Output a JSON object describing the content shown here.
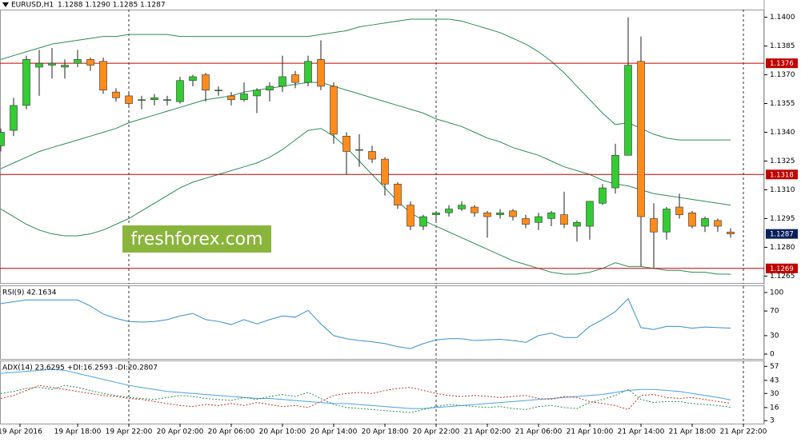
{
  "chart_data": [
    {
      "type": "candlestick",
      "title": "EURUSD,H1",
      "subtitle": "1.1288 1.1290 1.1285 1.1287",
      "open": [
        1.1333,
        1.1341,
        1.1354,
        1.1374,
        1.1375,
        1.1374,
        1.1376,
        1.1378,
        1.1377,
        1.1361,
        1.1359,
        1.1357,
        1.1357,
        1.1357,
        1.1356,
        1.1367,
        1.137,
        1.1362,
        1.1359,
        1.1357,
        1.1359,
        1.1362,
        1.1364,
        1.137,
        1.1366,
        1.1378,
        1.1364,
        1.1338,
        1.1331,
        1.133,
        1.1326,
        1.1313,
        1.1302,
        1.1291,
        1.1297,
        1.1298,
        1.13,
        1.1301,
        1.1298,
        1.1297,
        1.1299,
        1.1295,
        1.1293,
        1.1295,
        1.1297,
        1.1291,
        1.1291,
        1.1303,
        1.1311,
        1.1328,
        1.1377,
        1.1295,
        1.1288,
        1.1301,
        1.1298,
        1.1291,
        1.1294,
        1.1288
      ],
      "high": [
        1.1342,
        1.1358,
        1.138,
        1.1383,
        1.1384,
        1.1378,
        1.1383,
        1.1379,
        1.1379,
        1.1363,
        1.1361,
        1.1359,
        1.136,
        1.1359,
        1.1369,
        1.137,
        1.1371,
        1.1364,
        1.1361,
        1.1366,
        1.1363,
        1.1366,
        1.138,
        1.1372,
        1.138,
        1.1388,
        1.1366,
        1.134,
        1.1339,
        1.1333,
        1.1327,
        1.1314,
        1.1304,
        1.1297,
        1.1299,
        1.1302,
        1.1304,
        1.1302,
        1.1299,
        1.13,
        1.13,
        1.1297,
        1.1298,
        1.1299,
        1.1309,
        1.1294,
        1.1304,
        1.1313,
        1.1334,
        1.14,
        1.139,
        1.1303,
        1.1301,
        1.1308,
        1.1299,
        1.1296,
        1.1295,
        1.129
      ],
      "low": [
        1.133,
        1.1338,
        1.1352,
        1.1359,
        1.1368,
        1.1368,
        1.1374,
        1.1372,
        1.136,
        1.1356,
        1.1354,
        1.1352,
        1.1354,
        1.1354,
        1.1355,
        1.1364,
        1.1356,
        1.1359,
        1.1354,
        1.1356,
        1.135,
        1.1356,
        1.1361,
        1.1363,
        1.1364,
        1.1362,
        1.1334,
        1.1318,
        1.1322,
        1.1324,
        1.1307,
        1.13,
        1.1289,
        1.1289,
        1.1293,
        1.1296,
        1.1299,
        1.1296,
        1.1285,
        1.1295,
        1.1294,
        1.129,
        1.1289,
        1.1291,
        1.129,
        1.1283,
        1.1284,
        1.1302,
        1.1308,
        1.1328,
        1.127,
        1.1269,
        1.1284,
        1.1295,
        1.129,
        1.1288,
        1.1288,
        1.1285
      ],
      "close": [
        1.134,
        1.1354,
        1.1378,
        1.1376,
        1.1376,
        1.1375,
        1.1378,
        1.1375,
        1.1362,
        1.1358,
        1.1355,
        1.1357,
        1.1358,
        1.1357,
        1.1367,
        1.1369,
        1.1362,
        1.1362,
        1.1357,
        1.136,
        1.1362,
        1.1364,
        1.1369,
        1.1366,
        1.1377,
        1.1364,
        1.1339,
        1.133,
        1.1331,
        1.1326,
        1.1313,
        1.1302,
        1.1291,
        1.1296,
        1.1298,
        1.13,
        1.1302,
        1.1298,
        1.1296,
        1.1298,
        1.1296,
        1.1292,
        1.1296,
        1.1298,
        1.1292,
        1.1293,
        1.1304,
        1.1311,
        1.1328,
        1.1375,
        1.1296,
        1.1288,
        1.13,
        1.1297,
        1.1291,
        1.1295,
        1.1291,
        1.1287
      ],
      "up_color": "#33cc33",
      "down_color": "#ff8c1a",
      "overlays": [
        {
          "color": "#2e8b57",
          "values": [
            1.1378,
            1.138,
            1.1382,
            1.1384,
            1.1386,
            1.1387,
            1.1388,
            1.1389,
            1.139,
            1.139,
            1.1391,
            1.1391,
            1.1391,
            1.1391,
            1.139,
            1.139,
            1.139,
            1.139,
            1.139,
            1.139,
            1.139,
            1.139,
            1.139,
            1.139,
            1.139,
            1.1391,
            1.1392,
            1.1393,
            1.1395,
            1.1396,
            1.1397,
            1.1398,
            1.1399,
            1.1399,
            1.1399,
            1.1399,
            1.1398,
            1.1396,
            1.1394,
            1.1392,
            1.1389,
            1.1386,
            1.1382,
            1.1377,
            1.1371,
            1.1364,
            1.1357,
            1.135,
            1.1344,
            1.1345,
            1.1342,
            1.1339,
            1.1337,
            1.1336,
            1.1336,
            1.1336,
            1.1336,
            1.1336
          ]
        },
        {
          "color": "#2e8b57",
          "values": [
            1.1321,
            1.1324,
            1.1327,
            1.133,
            1.1332,
            1.1334,
            1.1336,
            1.1338,
            1.134,
            1.1342,
            1.1345,
            1.1347,
            1.1349,
            1.1351,
            1.1353,
            1.1355,
            1.1357,
            1.1358,
            1.1359,
            1.1361,
            1.1362,
            1.1363,
            1.1364,
            1.1365,
            1.1366,
            1.1366,
            1.1364,
            1.1362,
            1.136,
            1.1358,
            1.1356,
            1.1354,
            1.1352,
            1.135,
            1.1347,
            1.1345,
            1.1343,
            1.134,
            1.1337,
            1.1335,
            1.1332,
            1.133,
            1.1328,
            1.1325,
            1.1322,
            1.132,
            1.1318,
            1.1315,
            1.1313,
            1.1312,
            1.131,
            1.1308,
            1.1307,
            1.1306,
            1.1305,
            1.1304,
            1.1303,
            1.1302
          ]
        },
        {
          "color": "#2e8b57",
          "values": [
            1.13,
            1.1296,
            1.1292,
            1.1289,
            1.1287,
            1.1286,
            1.1286,
            1.1287,
            1.1289,
            1.1292,
            1.1295,
            1.1299,
            1.1303,
            1.1307,
            1.1311,
            1.1314,
            1.1316,
            1.1318,
            1.132,
            1.1322,
            1.1324,
            1.1327,
            1.1331,
            1.1336,
            1.1341,
            1.1342,
            1.1338,
            1.1332,
            1.1325,
            1.1318,
            1.1311,
            1.1304,
            1.1298,
            1.1294,
            1.1291,
            1.1288,
            1.1285,
            1.1282,
            1.1279,
            1.1276,
            1.1273,
            1.1271,
            1.1269,
            1.1267,
            1.1266,
            1.1266,
            1.1267,
            1.1269,
            1.1272,
            1.127,
            1.127,
            1.1269,
            1.1268,
            1.1268,
            1.1267,
            1.1267,
            1.1266,
            1.1266
          ]
        }
      ],
      "levels": [
        {
          "value": 1.1376,
          "color": "#c00000",
          "show_line": true
        },
        {
          "value": 1.1318,
          "color": "#c00000",
          "show_line": true
        },
        {
          "value": 1.1269,
          "color": "#c00000",
          "show_line": true
        },
        {
          "value": 1.1287,
          "color": "#0a1f5c",
          "show_line": false
        }
      ],
      "ylim": [
        1.1261,
        1.1404
      ],
      "yticks": [
        {
          "value": 1.14,
          "label": "1.1400"
        },
        1.1385,
        {
          "value": 1.137,
          "label": "1.1370"
        },
        1.1355,
        {
          "value": 1.134,
          "label": "1.1340"
        },
        1.1325,
        {
          "value": 1.131,
          "label": "1.1310"
        },
        1.1295,
        {
          "value": 1.128,
          "label": "1.1280"
        },
        1.1265
      ],
      "x_labels": [
        "19 Apr 2016",
        "19 Apr 18:00",
        "19 Apr 22:00",
        "20 Apr 02:00",
        "20 Apr 06:00",
        "20 Apr 10:00",
        "20 Apr 14:00",
        "20 Apr 18:00",
        "20 Apr 22:00",
        "21 Apr 02:00",
        "21 Apr 06:00",
        "21 Apr 10:00",
        "21 Apr 14:00",
        "21 Apr 18:00",
        "21 Apr 22:00"
      ],
      "watermark": "freshforex.com"
    },
    {
      "type": "line",
      "title": "RSI(9) 42.1634",
      "series": [
        {
          "color": "#3a8fc8",
          "dash": false,
          "values": [
            82,
            85,
            88,
            88,
            88,
            88,
            88,
            78,
            65,
            58,
            53,
            52,
            53,
            56,
            62,
            66,
            56,
            53,
            48,
            56,
            49,
            56,
            62,
            60,
            71,
            49,
            30,
            25,
            22,
            20,
            17,
            12,
            9,
            17,
            23,
            25,
            25,
            22,
            23,
            24,
            22,
            19,
            30,
            34,
            27,
            27,
            45,
            56,
            69,
            90,
            43,
            40,
            45,
            45,
            42,
            44,
            43,
            42.1634
          ]
        }
      ],
      "ylim": [
        -7.8,
        110.4
      ],
      "yticks": [
        100,
        70,
        30,
        0
      ]
    },
    {
      "type": "line",
      "title": "ADX(14) 23.6295 +DI:16.2593 -DI:20.2807",
      "series": [
        {
          "color": "#4aa3df",
          "dash": false,
          "values": [
            50,
            51,
            52,
            53,
            54,
            53,
            50,
            47,
            44,
            41,
            38,
            36,
            34,
            32,
            31,
            30,
            29,
            28,
            27,
            26,
            25,
            25,
            24,
            23,
            22,
            21,
            20,
            20,
            19,
            18,
            17,
            16,
            15,
            15,
            16,
            17,
            18,
            19,
            20,
            21,
            22,
            23,
            24,
            25,
            26,
            27,
            28,
            29,
            31,
            33,
            34,
            34,
            33,
            32,
            30,
            28,
            26,
            23.6295
          ]
        },
        {
          "color": "#2e8b57",
          "dash": true,
          "values": [
            30,
            32,
            35,
            36,
            34,
            38,
            36,
            33,
            30,
            28,
            26,
            25,
            24,
            26,
            28,
            27,
            25,
            24,
            23,
            26,
            24,
            27,
            29,
            27,
            31,
            25,
            19,
            16,
            15,
            14,
            13,
            12,
            11,
            14,
            17,
            19,
            18,
            17,
            16,
            17,
            15,
            14,
            17,
            18,
            16,
            15,
            21,
            24,
            28,
            34,
            24,
            21,
            22,
            22,
            20,
            19,
            18,
            16.2593
          ]
        },
        {
          "color": "#c0392b",
          "dash": true,
          "values": [
            25,
            28,
            33,
            38,
            36,
            34,
            32,
            30,
            28,
            27,
            25,
            24,
            22,
            20,
            18,
            17,
            19,
            18,
            20,
            18,
            21,
            19,
            17,
            18,
            16,
            22,
            28,
            30,
            31,
            30,
            33,
            35,
            36,
            33,
            30,
            28,
            27,
            28,
            27,
            26,
            27,
            28,
            25,
            24,
            27,
            26,
            22,
            20,
            18,
            14,
            28,
            29,
            26,
            25,
            26,
            24,
            22,
            20.2807
          ]
        }
      ],
      "ylim": [
        0,
        62
      ],
      "yticks": [
        57,
        43,
        30,
        16,
        3
      ]
    }
  ]
}
